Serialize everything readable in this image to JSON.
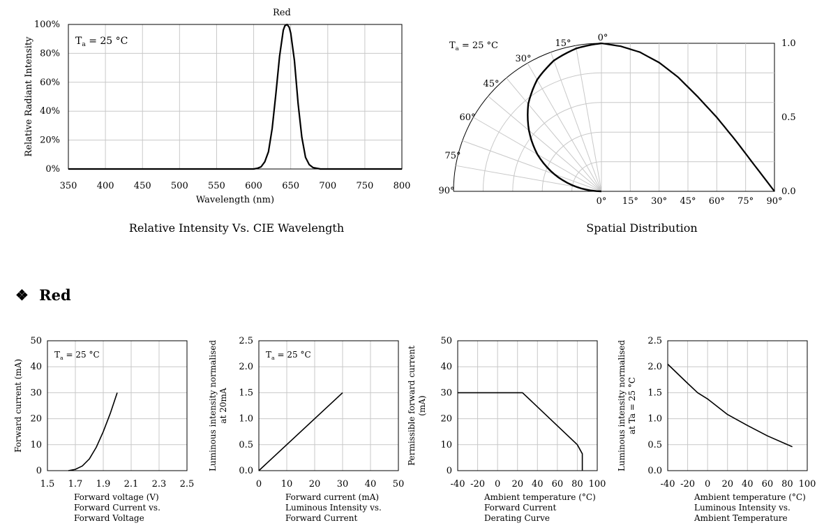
{
  "section": {
    "bullet": "❖",
    "title": "Red"
  },
  "chart_data": [
    {
      "type": "line",
      "title": "Red",
      "caption": "Relative Intensity Vs. CIE Wavelength",
      "annotation": "Ta = 25 °C",
      "xlabel": "Wavelength (nm)",
      "ylabel": "Relative  Radiant Intensity",
      "xlim": [
        350,
        800
      ],
      "ylim": [
        0,
        100
      ],
      "xticks": [
        "350",
        "400",
        "450",
        "500",
        "550",
        "600",
        "650",
        "700",
        "750",
        "800"
      ],
      "yticks": [
        "0%",
        "20%",
        "40%",
        "60%",
        "80%",
        "100%"
      ],
      "grid": true,
      "x": [
        350,
        600,
        605,
        610,
        615,
        620,
        625,
        630,
        635,
        640,
        642,
        645,
        648,
        650,
        655,
        660,
        665,
        670,
        675,
        680,
        690,
        800
      ],
      "y": [
        0,
        0,
        0.5,
        1.5,
        5,
        12,
        28,
        52,
        78,
        96,
        99,
        100,
        98,
        94,
        75,
        45,
        22,
        8,
        3,
        1,
        0,
        0
      ]
    },
    {
      "type": "polar",
      "caption": "Spatial Distribution",
      "annotation": "Ta = 25 °C",
      "angle_labels": [
        "0°",
        "15°",
        "30°",
        "45°",
        "60°",
        "75°",
        "90°"
      ],
      "xticks": [
        "0°",
        "15°",
        "30°",
        "45°",
        "60°",
        "75°",
        "90°"
      ],
      "yticks": [
        "0.0",
        "0.5",
        "1.0"
      ],
      "angles_deg": [
        0,
        10,
        20,
        30,
        40,
        50,
        60,
        70,
        80,
        90
      ],
      "values": [
        1.0,
        0.98,
        0.94,
        0.87,
        0.77,
        0.64,
        0.5,
        0.34,
        0.17,
        0.0
      ]
    },
    {
      "type": "line",
      "annotation": "Ta = 25 °C",
      "xlabel": "Forward voltage (V)",
      "ylabel": "Forward current (mA)",
      "caption_lines": [
        "Forward Current vs.",
        "Forward Voltage"
      ],
      "xlim": [
        1.5,
        2.5
      ],
      "ylim": [
        0,
        50
      ],
      "xticks": [
        "1.5",
        "1.7",
        "1.9",
        "2.1",
        "2.3",
        "2.5"
      ],
      "yticks": [
        "0",
        "10",
        "20",
        "30",
        "40",
        "50"
      ],
      "grid": true,
      "x": [
        1.65,
        1.7,
        1.75,
        1.8,
        1.85,
        1.9,
        1.95,
        2.0
      ],
      "y": [
        0,
        0.5,
        1.8,
        4.5,
        9,
        15,
        22,
        30
      ]
    },
    {
      "type": "line",
      "annotation": "Ta = 25 °C",
      "xlabel": "Forward current (mA)",
      "ylabel_lines": [
        "Luminous intensity normalised",
        "at 20mA"
      ],
      "caption_lines": [
        "Luminous Intensity vs.",
        "Forward Current"
      ],
      "xlim": [
        0,
        50
      ],
      "ylim": [
        0,
        2.5
      ],
      "xticks": [
        "0",
        "10",
        "20",
        "30",
        "40",
        "50"
      ],
      "yticks": [
        "0.0",
        "0.5",
        "1.0",
        "1.5",
        "2.0",
        "2.5"
      ],
      "grid": true,
      "x": [
        0,
        30
      ],
      "y": [
        0,
        1.5
      ]
    },
    {
      "type": "line",
      "xlabel": "Ambient temperature (°C)",
      "ylabel_lines": [
        "Permissible forward current",
        "(mA)"
      ],
      "caption_lines": [
        "Forward Current",
        "Derating  Curve"
      ],
      "xlim": [
        -40,
        100
      ],
      "ylim": [
        0,
        50
      ],
      "xticks": [
        "-40",
        "-20",
        "0",
        "20",
        "40",
        "60",
        "80",
        "100"
      ],
      "yticks": [
        "0",
        "10",
        "20",
        "30",
        "40",
        "50"
      ],
      "grid": true,
      "x": [
        -40,
        25,
        80,
        85,
        85
      ],
      "y": [
        30,
        30,
        10,
        6.5,
        0
      ]
    },
    {
      "type": "line",
      "xlabel": "Ambient temperature (°C)",
      "ylabel_lines": [
        "Luminous intensity normalised",
        "at Ta = 25 °C"
      ],
      "caption_lines": [
        "Luminous Intensity vs.",
        "Ambient Temperature"
      ],
      "xlim": [
        -40,
        100
      ],
      "ylim": [
        0,
        2.5
      ],
      "xticks": [
        "-40",
        "-20",
        "0",
        "20",
        "40",
        "60",
        "80",
        "100"
      ],
      "yticks": [
        "0.0",
        "0.5",
        "1.0",
        "1.5",
        "2.0",
        "2.5"
      ],
      "grid": true,
      "x": [
        -40,
        -20,
        -10,
        0,
        20,
        40,
        60,
        85
      ],
      "y": [
        2.05,
        1.68,
        1.5,
        1.38,
        1.08,
        0.87,
        0.67,
        0.46
      ]
    }
  ]
}
